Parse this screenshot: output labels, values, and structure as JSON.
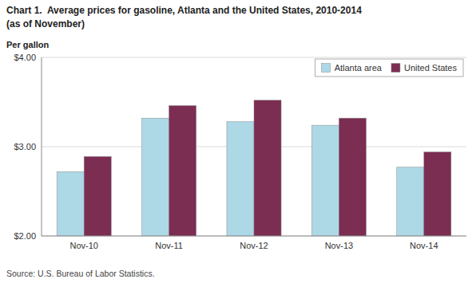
{
  "chart_data": {
    "type": "bar",
    "title": "Chart 1.  Average prices for gasoline, Atlanta and the United States, 2010-2014",
    "subtitle": "(as of November)",
    "ylabel": "Per gallon",
    "annotations": [
      "Source: U.S. Bureau of Labor Statistics."
    ],
    "categories": [
      "Nov-10",
      "Nov-11",
      "Nov-12",
      "Nov-13",
      "Nov-14"
    ],
    "series": [
      {
        "name": "Atlanta area",
        "color": "#ADD8E6",
        "values": [
          2.72,
          3.32,
          3.28,
          3.24,
          2.77
        ]
      },
      {
        "name": "United States",
        "color": "#7B2D52",
        "values": [
          2.89,
          3.46,
          3.52,
          3.32,
          2.94
        ]
      }
    ],
    "ylim": [
      2.0,
      4.0
    ],
    "yticks": [
      {
        "value": 2.0,
        "label": "$2.00"
      },
      {
        "value": 3.0,
        "label": "$3.00"
      },
      {
        "value": 4.0,
        "label": "$4.00"
      }
    ],
    "grid": true,
    "legend": "top-right"
  }
}
